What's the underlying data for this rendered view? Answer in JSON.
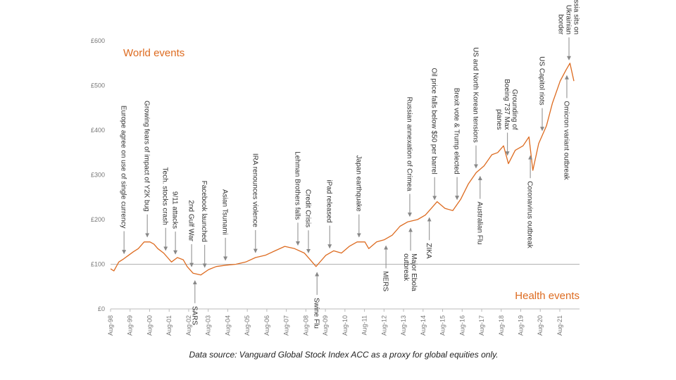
{
  "chart_data": {
    "type": "line",
    "color": "#dd6b20",
    "ylim": [
      0,
      600
    ],
    "yticks": [
      {
        "value": 0,
        "label": "£0"
      },
      {
        "value": 100,
        "label": "£100"
      },
      {
        "value": 200,
        "label": "£200"
      },
      {
        "value": 300,
        "label": "£300"
      },
      {
        "value": 400,
        "label": "£400"
      },
      {
        "value": 500,
        "label": "£500"
      },
      {
        "value": 600,
        "label": "£600"
      }
    ],
    "xlim": [
      1998.58,
      2022.59
    ],
    "xticks": [
      {
        "value": 1998.58,
        "label": "Aug-98"
      },
      {
        "value": 1999.58,
        "label": "Aug-99"
      },
      {
        "value": 2000.58,
        "label": "Aug-00"
      },
      {
        "value": 2001.58,
        "label": "Aug-01"
      },
      {
        "value": 2002.58,
        "label": "Aug-02"
      },
      {
        "value": 2003.58,
        "label": "Aug-03"
      },
      {
        "value": 2004.58,
        "label": "Aug-04"
      },
      {
        "value": 2005.58,
        "label": "Aug-05"
      },
      {
        "value": 2006.58,
        "label": "Aug-06"
      },
      {
        "value": 2007.58,
        "label": "Aug-07"
      },
      {
        "value": 2008.58,
        "label": "Aug-08"
      },
      {
        "value": 2009.58,
        "label": "Aug-09"
      },
      {
        "value": 2010.58,
        "label": "Aug-10"
      },
      {
        "value": 2011.58,
        "label": "Aug-11"
      },
      {
        "value": 2012.58,
        "label": "Aug-12"
      },
      {
        "value": 2013.58,
        "label": "Aug-13"
      },
      {
        "value": 2014.58,
        "label": "Aug-14"
      },
      {
        "value": 2015.58,
        "label": "Aug-15"
      },
      {
        "value": 2016.58,
        "label": "Aug-16"
      },
      {
        "value": 2017.58,
        "label": "Aug-17"
      },
      {
        "value": 2018.58,
        "label": "Aug-18"
      },
      {
        "value": 2019.58,
        "label": "Aug-19"
      },
      {
        "value": 2020.58,
        "label": "Aug-20"
      },
      {
        "value": 2021.58,
        "label": "Aug-21"
      }
    ],
    "reference_line": 100,
    "grid": false,
    "x": [
      1998.58,
      1998.75,
      1999.0,
      1999.25,
      1999.5,
      1999.75,
      2000.0,
      2000.3,
      2000.6,
      2000.8,
      2001.0,
      2001.3,
      2001.5,
      2001.7,
      2002.0,
      2002.3,
      2002.5,
      2002.8,
      2003.2,
      2003.6,
      2004.0,
      2004.5,
      2005.0,
      2005.5,
      2006.0,
      2006.5,
      2007.0,
      2007.5,
      2008.0,
      2008.5,
      2008.8,
      2009.1,
      2009.2,
      2009.6,
      2010.0,
      2010.4,
      2010.8,
      2011.2,
      2011.6,
      2011.8,
      2012.2,
      2012.6,
      2013.0,
      2013.4,
      2013.8,
      2014.3,
      2014.7,
      2015.0,
      2015.3,
      2015.7,
      2016.1,
      2016.5,
      2016.9,
      2017.3,
      2017.7,
      2018.1,
      2018.4,
      2018.7,
      2018.95,
      2019.3,
      2019.7,
      2020.0,
      2020.2,
      2020.5,
      2020.9,
      2021.2,
      2021.6,
      2021.9,
      2022.1,
      2022.3
    ],
    "values": [
      90,
      85,
      105,
      112,
      120,
      128,
      135,
      150,
      150,
      145,
      135,
      125,
      115,
      105,
      115,
      110,
      95,
      80,
      76,
      88,
      95,
      98,
      100,
      105,
      115,
      120,
      130,
      140,
      135,
      125,
      110,
      95,
      100,
      120,
      130,
      125,
      140,
      150,
      150,
      135,
      150,
      155,
      165,
      185,
      195,
      200,
      210,
      225,
      240,
      225,
      220,
      245,
      280,
      305,
      320,
      345,
      350,
      365,
      325,
      355,
      365,
      385,
      310,
      370,
      410,
      460,
      510,
      535,
      550,
      510
    ],
    "world_events": {
      "label": "World events",
      "items": [
        {
          "x": 1999.27,
          "lines": [
            "Europe agree on use of single currency"
          ]
        },
        {
          "x": 2000.46,
          "lines": [
            "Growing fears of impact of Y2K bug"
          ]
        },
        {
          "x": 2001.4,
          "lines": [
            "Tech. stocks crash"
          ]
        },
        {
          "x": 2001.9,
          "lines": [
            "9/11 attacks"
          ]
        },
        {
          "x": 2002.73,
          "lines": [
            "2nd Gulf War"
          ]
        },
        {
          "x": 2003.4,
          "lines": [
            "Facebook launched"
          ]
        },
        {
          "x": 2004.46,
          "lines": [
            "Asian Tsunami"
          ]
        },
        {
          "x": 2006.0,
          "lines": [
            "IRA renounces violence"
          ]
        },
        {
          "x": 2008.17,
          "lines": [
            "Lehman Brothers falls"
          ]
        },
        {
          "x": 2008.71,
          "lines": [
            "Credit Crisis"
          ]
        },
        {
          "x": 2009.8,
          "lines": [
            "iPad released"
          ]
        },
        {
          "x": 2011.3,
          "lines": [
            "Japan earthquake"
          ]
        },
        {
          "x": 2013.9,
          "lines": [
            "Russian annexation of Crimea"
          ]
        },
        {
          "x": 2015.17,
          "lines": [
            "Oil price falls below $50 per barrel"
          ]
        },
        {
          "x": 2016.32,
          "lines": [
            "Brexit vote & Trump elected"
          ]
        },
        {
          "x": 2017.29,
          "lines": [
            "US and North Korean tensions"
          ]
        },
        {
          "x": 2018.9,
          "lines": [
            "Grounding of",
            "Boeing 737 Max",
            "planes"
          ]
        },
        {
          "x": 2020.68,
          "lines": [
            "US Capitol riots"
          ]
        },
        {
          "x": 2022.05,
          "lines": [
            "Russia sits on",
            "Ukrainian",
            "border"
          ]
        }
      ]
    },
    "health_events": {
      "label": "Health events",
      "items": [
        {
          "x": 2002.9,
          "lines": [
            "SARS"
          ]
        },
        {
          "x": 2009.15,
          "lines": [
            "Swine Flu"
          ]
        },
        {
          "x": 2012.68,
          "lines": [
            "MERS"
          ]
        },
        {
          "x": 2013.94,
          "lines": [
            "Major Ebola",
            "outbreak"
          ]
        },
        {
          "x": 2014.9,
          "lines": [
            "ZIKA"
          ]
        },
        {
          "x": 2017.5,
          "lines": [
            "Australian Flu"
          ]
        },
        {
          "x": 2020.07,
          "lines": [
            "Coronavirus outbreak"
          ]
        },
        {
          "x": 2021.94,
          "lines": [
            "Omicron variant outbreak"
          ]
        }
      ]
    },
    "caption": "Data source: Vanguard Global Stock Index ACC as a proxy for global equities only."
  }
}
